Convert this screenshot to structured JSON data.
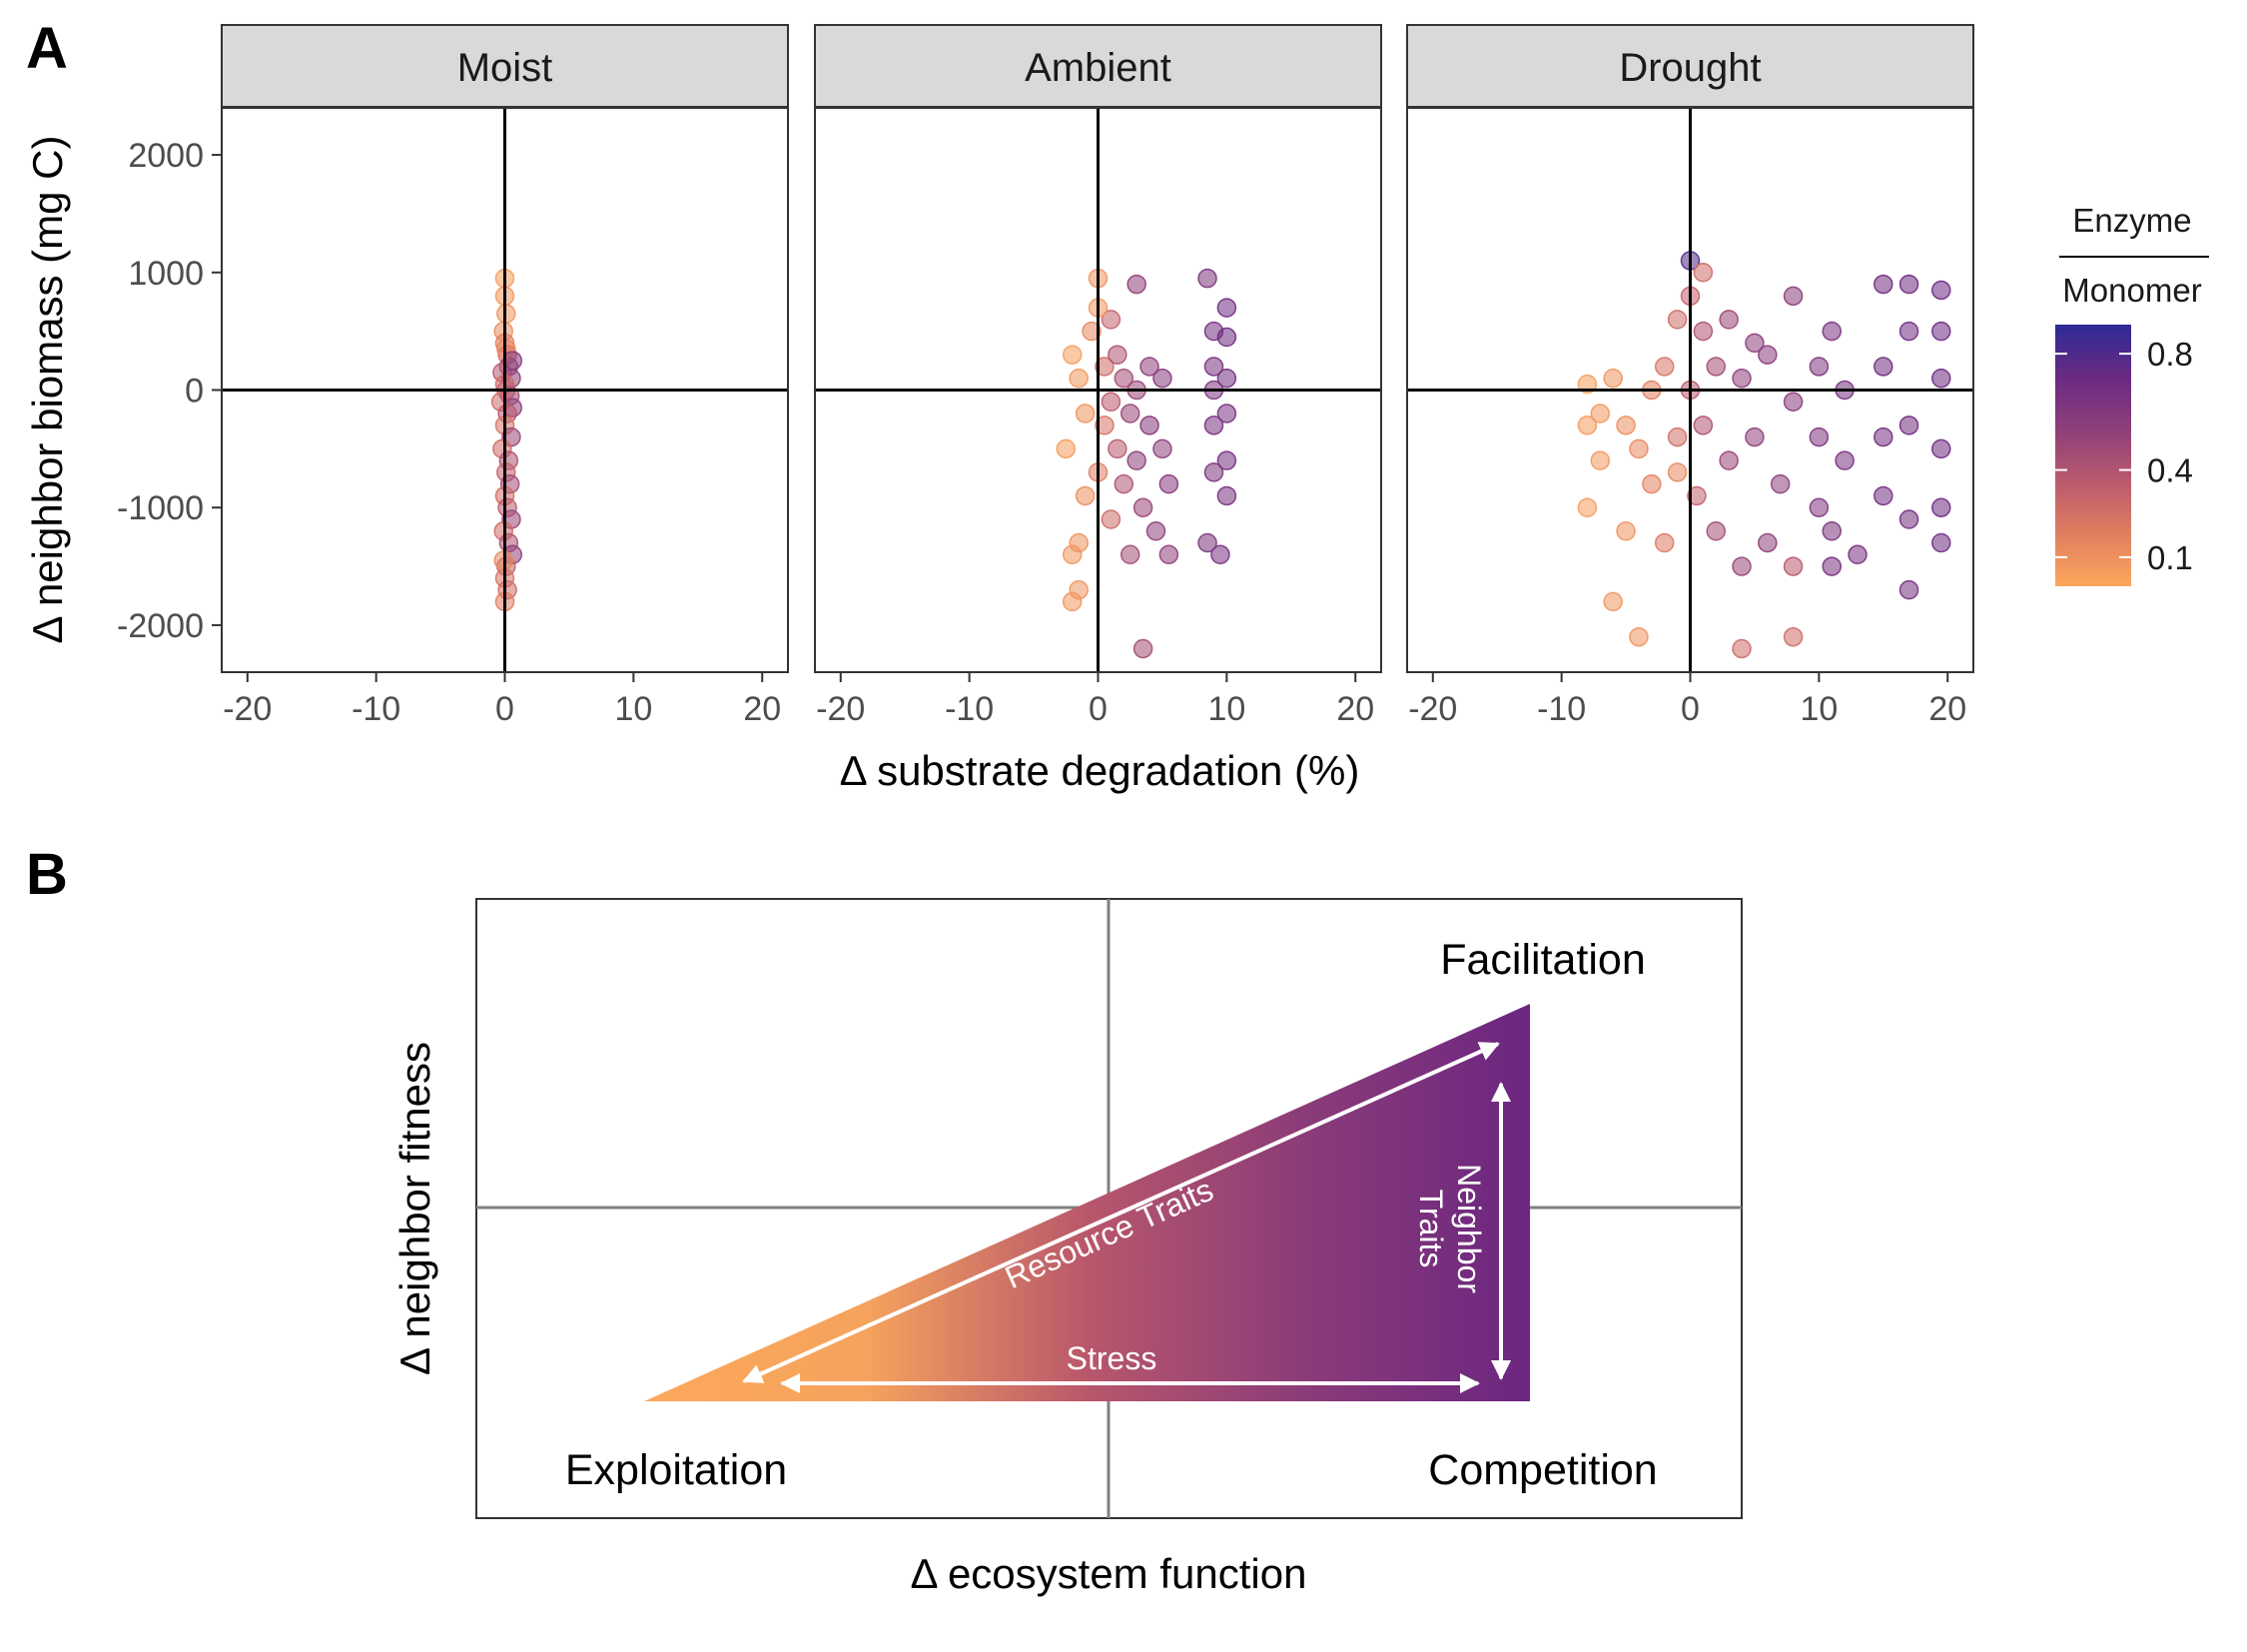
{
  "panel_a_letter": "A",
  "panel_b_letter": "B",
  "legend": {
    "title_top": "Enzyme",
    "title_bottom": "Monomer",
    "ticks": [
      0.8,
      0.4,
      0.1
    ],
    "colors": [
      "#fca85c",
      "#e07e60",
      "#b95a6e",
      "#8e3f7a",
      "#6a2a82",
      "#3b2a8e"
    ],
    "color_max": "#2d2a95"
  },
  "chart_data": [
    {
      "type": "scatter",
      "facets": [
        "Moist",
        "Ambient",
        "Drought"
      ],
      "xlabel": "Δ substrate degradation (%)",
      "ylabel": "Δ neighbor biomass (mg C)",
      "xlim": [
        -22,
        22
      ],
      "ylim": [
        -2400,
        2400
      ],
      "xticks": [
        -20,
        -10,
        0,
        10,
        20
      ],
      "yticks": [
        2000,
        1000,
        0,
        -1000,
        -2000
      ],
      "reference_lines": {
        "x": 0,
        "y": 0
      },
      "color_variable": "Enzyme / Monomer",
      "series": [
        {
          "facet": "Moist",
          "points": [
            [
              0,
              950,
              0.05
            ],
            [
              0,
              800,
              0.08
            ],
            [
              0.1,
              650,
              0.1
            ],
            [
              -0.1,
              500,
              0.12
            ],
            [
              0,
              400,
              0.2
            ],
            [
              0.2,
              300,
              0.3
            ],
            [
              0.3,
              200,
              0.5
            ],
            [
              -0.2,
              150,
              0.4
            ],
            [
              0.5,
              100,
              0.6
            ],
            [
              0,
              50,
              0.3
            ],
            [
              0.1,
              0,
              0.35
            ],
            [
              0.4,
              -50,
              0.5
            ],
            [
              -0.3,
              -100,
              0.3
            ],
            [
              0.6,
              -150,
              0.6
            ],
            [
              0.2,
              -200,
              0.4
            ],
            [
              0,
              -300,
              0.25
            ],
            [
              0.5,
              -400,
              0.55
            ],
            [
              -0.2,
              -500,
              0.3
            ],
            [
              0.3,
              -600,
              0.45
            ],
            [
              0.1,
              -700,
              0.35
            ],
            [
              0.4,
              -800,
              0.5
            ],
            [
              0,
              -900,
              0.3
            ],
            [
              0.2,
              -1000,
              0.4
            ],
            [
              0.5,
              -1100,
              0.55
            ],
            [
              -0.1,
              -1200,
              0.3
            ],
            [
              0.3,
              -1300,
              0.45
            ],
            [
              0.6,
              -1400,
              0.6
            ],
            [
              0.1,
              -1500,
              0.35
            ],
            [
              0,
              -1600,
              0.25
            ],
            [
              0.2,
              -1700,
              0.3
            ],
            [
              0,
              -1800,
              0.2
            ],
            [
              0.1,
              350,
              0.15
            ],
            [
              0.6,
              250,
              0.65
            ],
            [
              -0.1,
              -1450,
              0.15
            ]
          ]
        },
        {
          "facet": "Ambient",
          "points": [
            [
              -2,
              300,
              0.05
            ],
            [
              -1.5,
              100,
              0.08
            ],
            [
              -1,
              -200,
              0.1
            ],
            [
              -2.5,
              -500,
              0.06
            ],
            [
              -1,
              -900,
              0.12
            ],
            [
              -2,
              -1400,
              0.08
            ],
            [
              -1.5,
              -1700,
              0.1
            ],
            [
              -0.5,
              500,
              0.15
            ],
            [
              0,
              950,
              0.1
            ],
            [
              0.5,
              200,
              0.3
            ],
            [
              0.5,
              -300,
              0.25
            ],
            [
              0,
              -700,
              0.2
            ],
            [
              1,
              600,
              0.35
            ],
            [
              1,
              -100,
              0.4
            ],
            [
              1,
              -1100,
              0.3
            ],
            [
              1.5,
              300,
              0.45
            ],
            [
              1.5,
              -500,
              0.4
            ],
            [
              2,
              100,
              0.5
            ],
            [
              2,
              -800,
              0.45
            ],
            [
              2.5,
              -200,
              0.55
            ],
            [
              2.5,
              -1400,
              0.5
            ],
            [
              3,
              900,
              0.6
            ],
            [
              3,
              0,
              0.55
            ],
            [
              3,
              -600,
              0.6
            ],
            [
              3.5,
              -1000,
              0.55
            ],
            [
              3.5,
              -2200,
              0.5
            ],
            [
              4,
              200,
              0.6
            ],
            [
              4,
              -300,
              0.65
            ],
            [
              4.5,
              -1200,
              0.6
            ],
            [
              5,
              100,
              0.65
            ],
            [
              5,
              -500,
              0.6
            ],
            [
              5.5,
              -800,
              0.65
            ],
            [
              5.5,
              -1400,
              0.6
            ],
            [
              -1.5,
              -1300,
              0.1
            ],
            [
              -2,
              -1800,
              0.08
            ],
            [
              8.5,
              950,
              0.7
            ],
            [
              9,
              500,
              0.75
            ],
            [
              9,
              200,
              0.72
            ],
            [
              9,
              0,
              0.7
            ],
            [
              9,
              -300,
              0.72
            ],
            [
              9,
              -700,
              0.7
            ],
            [
              9.5,
              -1400,
              0.72
            ],
            [
              10,
              450,
              0.78
            ],
            [
              10,
              100,
              0.75
            ],
            [
              10,
              -200,
              0.72
            ],
            [
              10,
              -600,
              0.75
            ],
            [
              10,
              -900,
              0.72
            ],
            [
              10,
              700,
              0.78
            ],
            [
              8.5,
              -1300,
              0.7
            ],
            [
              0,
              700,
              0.08
            ]
          ]
        },
        {
          "facet": "Drought",
          "points": [
            [
              -8,
              50,
              0.05
            ],
            [
              -8,
              -300,
              0.06
            ],
            [
              -8,
              -1000,
              0.05
            ],
            [
              -7,
              -200,
              0.08
            ],
            [
              -7,
              -600,
              0.07
            ],
            [
              -6,
              100,
              0.1
            ],
            [
              -6,
              -1800,
              0.08
            ],
            [
              -5,
              -300,
              0.12
            ],
            [
              -5,
              -1200,
              0.1
            ],
            [
              -4,
              -500,
              0.15
            ],
            [
              -4,
              -2100,
              0.1
            ],
            [
              -3,
              0,
              0.2
            ],
            [
              -3,
              -800,
              0.18
            ],
            [
              -2,
              200,
              0.25
            ],
            [
              -2,
              -1300,
              0.22
            ],
            [
              -1,
              600,
              0.3
            ],
            [
              -1,
              -400,
              0.28
            ],
            [
              0,
              1100,
              0.9
            ],
            [
              0,
              800,
              0.35
            ],
            [
              0,
              0,
              0.4
            ],
            [
              0.5,
              -900,
              0.35
            ],
            [
              1,
              500,
              0.45
            ],
            [
              1,
              -300,
              0.45
            ],
            [
              2,
              200,
              0.5
            ],
            [
              2,
              -1200,
              0.5
            ],
            [
              3,
              600,
              0.55
            ],
            [
              3,
              -600,
              0.55
            ],
            [
              4,
              100,
              0.6
            ],
            [
              4,
              -1500,
              0.55
            ],
            [
              4,
              -2200,
              0.3
            ],
            [
              5,
              400,
              0.6
            ],
            [
              5,
              -400,
              0.6
            ],
            [
              6,
              -1300,
              0.6
            ],
            [
              6,
              300,
              0.62
            ],
            [
              7,
              -800,
              0.6
            ],
            [
              8,
              800,
              0.62
            ],
            [
              8,
              -2100,
              0.3
            ],
            [
              8,
              -1500,
              0.4
            ],
            [
              8,
              -100,
              0.64
            ],
            [
              10,
              200,
              0.68
            ],
            [
              10,
              -400,
              0.7
            ],
            [
              10,
              -1000,
              0.68
            ],
            [
              11,
              500,
              0.72
            ],
            [
              11,
              -1200,
              0.7
            ],
            [
              11,
              -1500,
              0.72
            ],
            [
              12,
              0,
              0.74
            ],
            [
              12,
              -600,
              0.72
            ],
            [
              13,
              -1400,
              0.72
            ],
            [
              15,
              900,
              0.76
            ],
            [
              15,
              200,
              0.76
            ],
            [
              15,
              -400,
              0.75
            ],
            [
              15,
              -900,
              0.74
            ],
            [
              17,
              900,
              0.78
            ],
            [
              17,
              500,
              0.78
            ],
            [
              17,
              -300,
              0.76
            ],
            [
              17,
              -1100,
              0.76
            ],
            [
              17,
              -1700,
              0.74
            ],
            [
              19.5,
              850,
              0.8
            ],
            [
              19.5,
              500,
              0.8
            ],
            [
              19.5,
              100,
              0.8
            ],
            [
              19.5,
              -500,
              0.78
            ],
            [
              19.5,
              -1000,
              0.78
            ],
            [
              19.5,
              -1300,
              0.78
            ],
            [
              -1,
              -700,
              0.15
            ],
            [
              1,
              1000,
              0.3
            ]
          ]
        }
      ]
    },
    {
      "type": "diagram",
      "xlabel": "Δ ecosystem function",
      "ylabel": "Δ neighbor fitness",
      "quadrants": [
        "Facilitation",
        "Competition",
        "Exploitation"
      ],
      "arrows": [
        "Resource Traits",
        "Neighbor Traits",
        "Stress"
      ]
    }
  ]
}
